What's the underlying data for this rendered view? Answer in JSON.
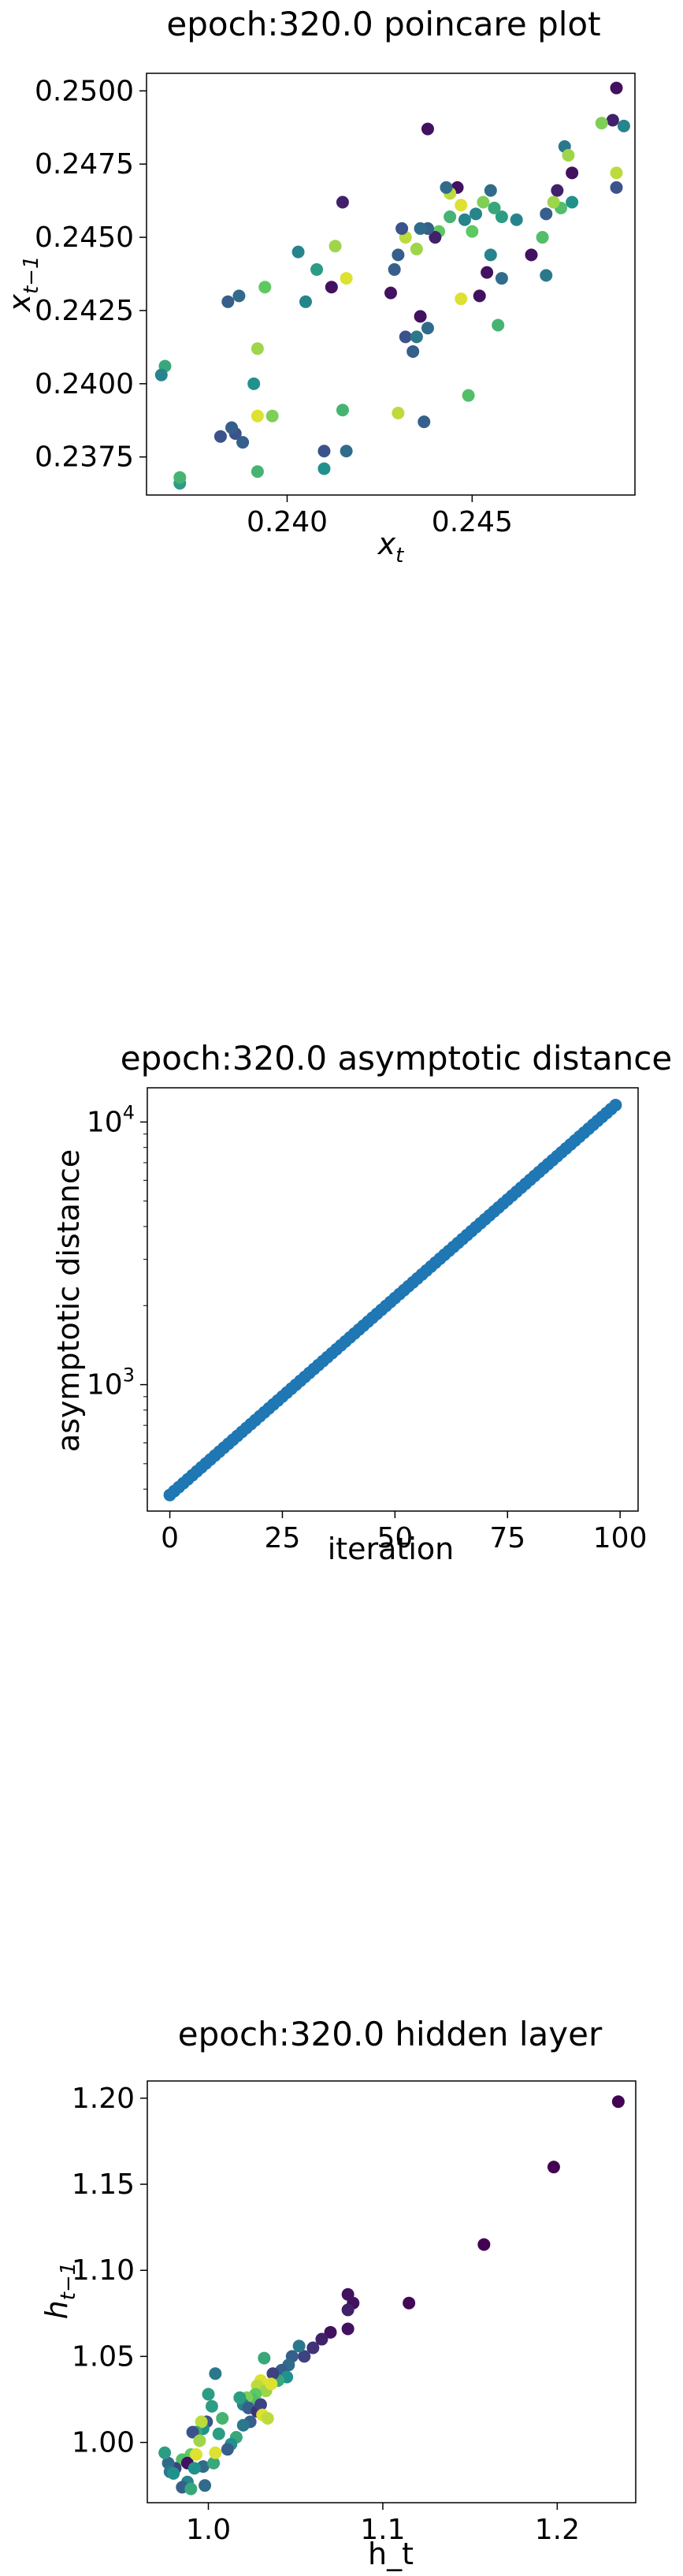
{
  "chart_data": [
    {
      "type": "scatter",
      "title": "epoch:320.0 poincare plot",
      "xlabel_base": "x",
      "xlabel_sub": "t",
      "ylabel_base": "x",
      "ylabel_sub": "t−1",
      "xlim": [
        0.2362,
        0.2494
      ],
      "ylim": [
        0.2362,
        0.2506
      ],
      "xticks": [
        0.24,
        0.245
      ],
      "xtick_labels": [
        "0.240",
        "0.245"
      ],
      "yticks": [
        0.2375,
        0.24,
        0.2425,
        0.245,
        0.2475,
        0.25
      ],
      "ytick_labels": [
        "0.2375",
        "0.2400",
        "0.2425",
        "0.2450",
        "0.2475",
        "0.2500"
      ],
      "color_scale": [
        "#440154",
        "#3b528b",
        "#21918c",
        "#5ec962",
        "#fde725"
      ],
      "points": [
        [
          0.2489,
          0.2501,
          0.05
        ],
        [
          0.2438,
          0.2487,
          0.05
        ],
        [
          0.2488,
          0.249,
          0.1
        ],
        [
          0.2485,
          0.2489,
          0.8
        ],
        [
          0.2491,
          0.2488,
          0.45
        ],
        [
          0.2489,
          0.2472,
          0.9
        ],
        [
          0.2489,
          0.2467,
          0.25
        ],
        [
          0.2475,
          0.2481,
          0.4
        ],
        [
          0.2476,
          0.2478,
          0.85
        ],
        [
          0.2477,
          0.2472,
          0.05
        ],
        [
          0.2473,
          0.2466,
          0.1
        ],
        [
          0.2474,
          0.246,
          0.7
        ],
        [
          0.2472,
          0.2462,
          0.85
        ],
        [
          0.2477,
          0.2462,
          0.5
        ],
        [
          0.247,
          0.2458,
          0.3
        ],
        [
          0.2469,
          0.245,
          0.7
        ],
        [
          0.2466,
          0.2444,
          0.05
        ],
        [
          0.247,
          0.2437,
          0.4
        ],
        [
          0.2462,
          0.2456,
          0.45
        ],
        [
          0.2458,
          0.2457,
          0.55
        ],
        [
          0.2456,
          0.246,
          0.6
        ],
        [
          0.2455,
          0.2466,
          0.35
        ],
        [
          0.2453,
          0.2462,
          0.8
        ],
        [
          0.2451,
          0.2458,
          0.45
        ],
        [
          0.245,
          0.2452,
          0.75
        ],
        [
          0.2448,
          0.2456,
          0.45
        ],
        [
          0.2447,
          0.2461,
          0.95
        ],
        [
          0.2446,
          0.2467,
          0.05
        ],
        [
          0.2444,
          0.2465,
          0.9
        ],
        [
          0.2443,
          0.2467,
          0.35
        ],
        [
          0.2444,
          0.2457,
          0.65
        ],
        [
          0.2441,
          0.2452,
          0.75
        ],
        [
          0.244,
          0.245,
          0.1
        ],
        [
          0.2438,
          0.2453,
          0.3
        ],
        [
          0.2436,
          0.2453,
          0.35
        ],
        [
          0.2435,
          0.2446,
          0.85
        ],
        [
          0.2432,
          0.245,
          0.9
        ],
        [
          0.2431,
          0.2453,
          0.25
        ],
        [
          0.243,
          0.2444,
          0.3
        ],
        [
          0.2429,
          0.2439,
          0.3
        ],
        [
          0.2428,
          0.2431,
          0.05
        ],
        [
          0.2432,
          0.2416,
          0.25
        ],
        [
          0.2434,
          0.2411,
          0.3
        ],
        [
          0.2435,
          0.2416,
          0.4
        ],
        [
          0.2436,
          0.2423,
          0.05
        ],
        [
          0.2438,
          0.2419,
          0.35
        ],
        [
          0.2455,
          0.2444,
          0.45
        ],
        [
          0.2454,
          0.2438,
          0.05
        ],
        [
          0.2458,
          0.2436,
          0.35
        ],
        [
          0.2452,
          0.243,
          0.05
        ],
        [
          0.2447,
          0.2429,
          0.95
        ],
        [
          0.2457,
          0.242,
          0.65
        ],
        [
          0.2449,
          0.2396,
          0.7
        ],
        [
          0.2437,
          0.2387,
          0.3
        ],
        [
          0.243,
          0.239,
          0.9
        ],
        [
          0.2415,
          0.2462,
          0.1
        ],
        [
          0.2413,
          0.2447,
          0.85
        ],
        [
          0.2416,
          0.2436,
          0.95
        ],
        [
          0.2412,
          0.2433,
          0.05
        ],
        [
          0.2408,
          0.2439,
          0.55
        ],
        [
          0.2403,
          0.2445,
          0.45
        ],
        [
          0.2405,
          0.2428,
          0.45
        ],
        [
          0.2394,
          0.2433,
          0.75
        ],
        [
          0.2387,
          0.243,
          0.35
        ],
        [
          0.2384,
          0.2428,
          0.3
        ],
        [
          0.2392,
          0.2412,
          0.85
        ],
        [
          0.2391,
          0.24,
          0.5
        ],
        [
          0.2386,
          0.2383,
          0.25
        ],
        [
          0.2385,
          0.2385,
          0.3
        ],
        [
          0.2388,
          0.238,
          0.3
        ],
        [
          0.2382,
          0.2382,
          0.25
        ],
        [
          0.2392,
          0.2389,
          0.95
        ],
        [
          0.2396,
          0.2389,
          0.8
        ],
        [
          0.2392,
          0.237,
          0.65
        ],
        [
          0.241,
          0.2377,
          0.25
        ],
        [
          0.241,
          0.2371,
          0.5
        ],
        [
          0.2415,
          0.2391,
          0.65
        ],
        [
          0.2416,
          0.2377,
          0.35
        ],
        [
          0.2367,
          0.2406,
          0.6
        ],
        [
          0.2366,
          0.2403,
          0.45
        ],
        [
          0.2371,
          0.2366,
          0.55
        ],
        [
          0.2371,
          0.2368,
          0.65
        ]
      ]
    },
    {
      "type": "scatter",
      "title": "epoch:320.0 asymptotic distance",
      "xlabel": "iteration",
      "ylabel": "asymptotic distance",
      "yscale": "log",
      "xlim": [
        -5,
        104
      ],
      "ylim": [
        330,
        13500
      ],
      "xticks": [
        0,
        25,
        50,
        75,
        100
      ],
      "xtick_labels": [
        "0",
        "25",
        "50",
        "75",
        "100"
      ],
      "yticks_major": [
        1000,
        10000
      ],
      "ytick_labels": [
        {
          "base": "10",
          "exp": "3"
        },
        {
          "base": "10",
          "exp": "4"
        }
      ],
      "color": "#1f77b4",
      "x_start": 0,
      "x_end": 99,
      "x_step": 1,
      "y_start": 380,
      "y_end": 11600
    },
    {
      "type": "scatter",
      "title": "epoch:320.0 hidden layer",
      "xlabel": "h_t",
      "ylabel_base": "h",
      "ylabel_sub": "t−1",
      "xlim": [
        0.965,
        1.245
      ],
      "ylim": [
        0.965,
        1.21
      ],
      "xticks": [
        1.0,
        1.1,
        1.2
      ],
      "xtick_labels": [
        "1.0",
        "1.1",
        "1.2"
      ],
      "yticks": [
        1.0,
        1.05,
        1.1,
        1.15,
        1.2
      ],
      "ytick_labels": [
        "1.00",
        "1.05",
        "1.10",
        "1.15",
        "1.20"
      ],
      "color_scale": [
        "#440154",
        "#3b528b",
        "#21918c",
        "#5ec962",
        "#fde725"
      ],
      "points": [
        [
          1.235,
          1.198,
          0.0
        ],
        [
          1.198,
          1.16,
          0.0
        ],
        [
          1.158,
          1.115,
          0.0
        ],
        [
          1.115,
          1.081,
          0.02
        ],
        [
          1.08,
          1.086,
          0.05
        ],
        [
          1.083,
          1.081,
          0.05
        ],
        [
          1.08,
          1.077,
          0.1
        ],
        [
          1.08,
          1.066,
          0.05
        ],
        [
          1.07,
          1.064,
          0.05
        ],
        [
          1.065,
          1.06,
          0.1
        ],
        [
          1.06,
          1.055,
          0.15
        ],
        [
          1.055,
          1.05,
          0.2
        ],
        [
          1.052,
          1.056,
          0.4
        ],
        [
          1.048,
          1.05,
          0.3
        ],
        [
          1.046,
          1.045,
          0.35
        ],
        [
          1.042,
          1.042,
          0.3
        ],
        [
          1.045,
          1.038,
          0.5
        ],
        [
          1.04,
          1.036,
          0.6
        ],
        [
          1.037,
          1.04,
          0.2
        ],
        [
          1.032,
          1.049,
          0.6
        ],
        [
          1.03,
          1.036,
          0.95
        ],
        [
          1.028,
          1.033,
          0.9
        ],
        [
          1.033,
          1.03,
          0.85
        ],
        [
          1.036,
          1.034,
          0.95
        ],
        [
          1.027,
          1.028,
          0.75
        ],
        [
          1.025,
          1.025,
          0.7
        ],
        [
          1.022,
          1.026,
          0.8
        ],
        [
          1.02,
          1.022,
          0.45
        ],
        [
          1.018,
          1.026,
          0.55
        ],
        [
          1.023,
          1.02,
          0.3
        ],
        [
          1.028,
          1.018,
          0.15
        ],
        [
          1.03,
          1.022,
          0.2
        ],
        [
          1.031,
          1.016,
          0.95
        ],
        [
          1.034,
          1.014,
          0.9
        ],
        [
          1.024,
          1.012,
          0.3
        ],
        [
          1.02,
          1.01,
          0.4
        ],
        [
          1.016,
          1.003,
          0.6
        ],
        [
          1.013,
          0.999,
          0.5
        ],
        [
          1.011,
          0.996,
          0.3
        ],
        [
          1.008,
          1.014,
          0.65
        ],
        [
          1.006,
          1.005,
          0.55
        ],
        [
          1.004,
          1.04,
          0.4
        ],
        [
          1.0,
          1.028,
          0.55
        ],
        [
          1.002,
          1.021,
          0.55
        ],
        [
          0.999,
          1.012,
          0.25
        ],
        [
          0.997,
          1.008,
          0.5
        ],
        [
          0.996,
          1.012,
          0.9
        ],
        [
          0.993,
          1.006,
          0.6
        ],
        [
          0.991,
          1.006,
          0.25
        ],
        [
          0.995,
          1.001,
          0.85
        ],
        [
          0.99,
          0.993,
          0.75
        ],
        [
          0.985,
          0.99,
          0.7
        ],
        [
          0.988,
          0.988,
          0.05
        ],
        [
          0.993,
          0.993,
          0.95
        ],
        [
          0.997,
          0.986,
          0.35
        ],
        [
          0.992,
          0.985,
          0.5
        ],
        [
          0.988,
          0.977,
          0.45
        ],
        [
          0.985,
          0.974,
          0.3
        ],
        [
          0.99,
          0.973,
          0.6
        ],
        [
          0.981,
          0.985,
          0.2
        ],
        [
          0.977,
          0.988,
          0.35
        ],
        [
          0.975,
          0.994,
          0.55
        ],
        [
          0.978,
          0.983,
          0.4
        ],
        [
          0.998,
          0.975,
          0.35
        ],
        [
          1.003,
          0.988,
          0.6
        ],
        [
          1.004,
          0.994,
          0.95
        ],
        [
          0.98,
          0.982,
          0.5
        ]
      ]
    }
  ]
}
